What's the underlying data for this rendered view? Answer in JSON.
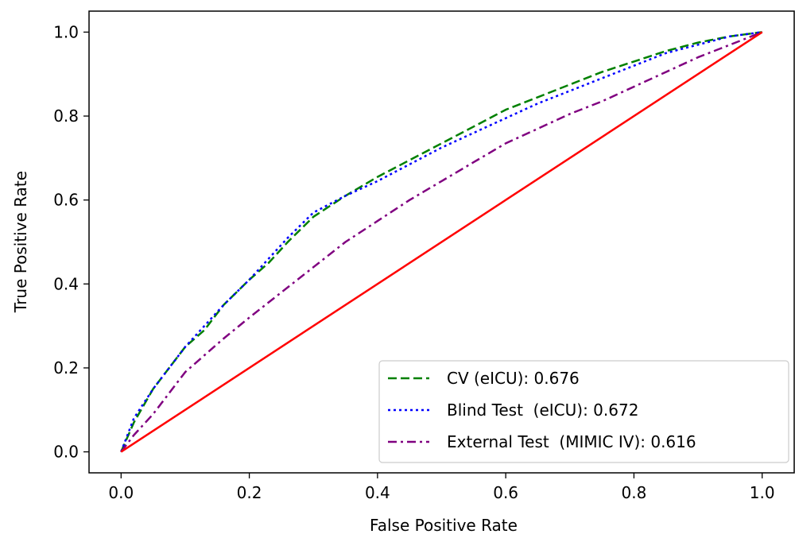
{
  "chart_data": {
    "type": "line",
    "title": "",
    "xlabel": "False Positive Rate",
    "ylabel": "True Positive Rate",
    "xlim": [
      -0.05,
      1.05
    ],
    "ylim": [
      -0.05,
      1.05
    ],
    "xticks": [
      0.0,
      0.2,
      0.4,
      0.6,
      0.8,
      1.0
    ],
    "yticks": [
      0.0,
      0.2,
      0.4,
      0.6,
      0.8,
      1.0
    ],
    "xtick_labels": [
      "0.0",
      "0.2",
      "0.4",
      "0.6",
      "0.8",
      "1.0"
    ],
    "ytick_labels": [
      "0.0",
      "0.2",
      "0.4",
      "0.6",
      "0.8",
      "1.0"
    ],
    "grid": false,
    "legend_position": "bottom-right",
    "series": [
      {
        "name": "CV (eICU): 0.676",
        "color": "#008000",
        "style": "dashed",
        "x": [
          0.0,
          0.02,
          0.05,
          0.08,
          0.1,
          0.13,
          0.16,
          0.2,
          0.23,
          0.26,
          0.3,
          0.35,
          0.4,
          0.45,
          0.5,
          0.55,
          0.6,
          0.65,
          0.7,
          0.75,
          0.8,
          0.85,
          0.9,
          0.95,
          1.0
        ],
        "y": [
          0.0,
          0.07,
          0.15,
          0.21,
          0.25,
          0.29,
          0.35,
          0.41,
          0.45,
          0.5,
          0.56,
          0.61,
          0.655,
          0.695,
          0.735,
          0.775,
          0.815,
          0.845,
          0.875,
          0.905,
          0.93,
          0.955,
          0.975,
          0.99,
          1.0
        ]
      },
      {
        "name": "Blind Test  (eICU): 0.672",
        "color": "#0000ff",
        "style": "dotted",
        "x": [
          0.0,
          0.02,
          0.05,
          0.08,
          0.1,
          0.13,
          0.16,
          0.2,
          0.23,
          0.26,
          0.3,
          0.35,
          0.4,
          0.45,
          0.5,
          0.55,
          0.6,
          0.65,
          0.7,
          0.75,
          0.8,
          0.85,
          0.9,
          0.95,
          1.0
        ],
        "y": [
          0.0,
          0.08,
          0.15,
          0.21,
          0.25,
          0.3,
          0.35,
          0.41,
          0.46,
          0.51,
          0.57,
          0.61,
          0.645,
          0.685,
          0.725,
          0.76,
          0.795,
          0.83,
          0.86,
          0.89,
          0.92,
          0.95,
          0.97,
          0.99,
          1.0
        ]
      },
      {
        "name": "External Test  (MIMIC IV): 0.616",
        "color": "#800080",
        "style": "dashdot",
        "x": [
          0.0,
          0.02,
          0.05,
          0.08,
          0.1,
          0.13,
          0.16,
          0.2,
          0.25,
          0.3,
          0.35,
          0.4,
          0.45,
          0.5,
          0.55,
          0.6,
          0.65,
          0.7,
          0.75,
          0.8,
          0.85,
          0.9,
          0.95,
          1.0
        ],
        "y": [
          0.0,
          0.04,
          0.09,
          0.15,
          0.19,
          0.23,
          0.27,
          0.32,
          0.38,
          0.44,
          0.5,
          0.55,
          0.6,
          0.645,
          0.69,
          0.735,
          0.77,
          0.805,
          0.835,
          0.87,
          0.905,
          0.94,
          0.97,
          1.0
        ]
      },
      {
        "name": "",
        "color": "#ff0000",
        "style": "solid",
        "x": [
          0.0,
          1.0
        ],
        "y": [
          0.0,
          1.0
        ]
      }
    ]
  }
}
